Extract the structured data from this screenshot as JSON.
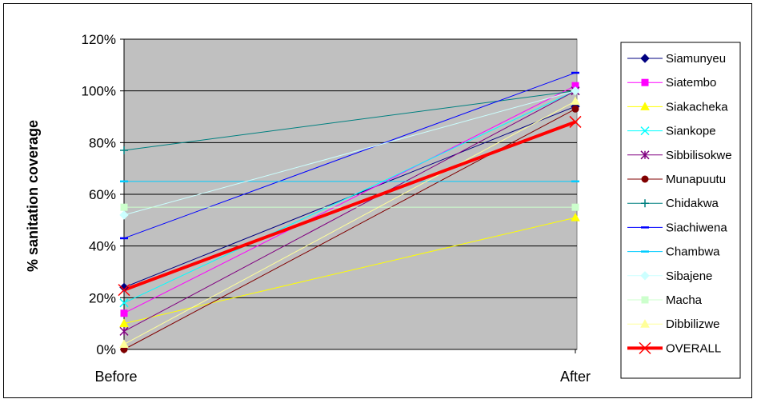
{
  "chart_data": {
    "type": "line",
    "categories": [
      "Before",
      "After"
    ],
    "ylabel": "% sanitation coverage",
    "ylim": [
      0,
      120
    ],
    "y_ticks": [
      "0%",
      "20%",
      "40%",
      "60%",
      "80%",
      "100%",
      "120%"
    ],
    "grid": "horizontal",
    "legend_position": "right",
    "plot_background": "#C0C0C0",
    "series": [
      {
        "name": "Siamunyeu",
        "values": [
          24,
          94
        ],
        "color": "#000080",
        "marker": "diamond",
        "width": 1
      },
      {
        "name": "Siatembo",
        "values": [
          14,
          102
        ],
        "color": "#FF00FF",
        "marker": "square",
        "width": 1
      },
      {
        "name": "Siakacheka",
        "values": [
          10,
          51
        ],
        "color": "#FFFF00",
        "marker": "triangle",
        "width": 1
      },
      {
        "name": "Siankope",
        "values": [
          18,
          100
        ],
        "color": "#00FFFF",
        "marker": "x",
        "width": 1
      },
      {
        "name": "Sibbilisokwe",
        "values": [
          7,
          100
        ],
        "color": "#800080",
        "marker": "star",
        "width": 1
      },
      {
        "name": "Munapuutu",
        "values": [
          0,
          93
        ],
        "color": "#800000",
        "marker": "circle",
        "width": 1
      },
      {
        "name": "Chidakwa",
        "values": [
          77,
          100
        ],
        "color": "#008080",
        "marker": "plus",
        "width": 1
      },
      {
        "name": "Siachiwena",
        "values": [
          43,
          107
        ],
        "color": "#0000FF",
        "marker": "dash",
        "width": 1
      },
      {
        "name": "Chambwa",
        "values": [
          65,
          65
        ],
        "color": "#00CCFF",
        "marker": "dash",
        "width": 1
      },
      {
        "name": "Sibajene",
        "values": [
          52,
          100
        ],
        "color": "#CCFFFF",
        "marker": "diamond",
        "width": 1
      },
      {
        "name": "Macha",
        "values": [
          55,
          55
        ],
        "color": "#CCFFCC",
        "marker": "square",
        "width": 1
      },
      {
        "name": "Dibbilizwe",
        "values": [
          2,
          96
        ],
        "color": "#FFFF99",
        "marker": "triangle",
        "width": 1
      },
      {
        "name": "OVERALL",
        "values": [
          23,
          88
        ],
        "color": "#FF0000",
        "marker": "x",
        "width": 4
      }
    ]
  }
}
